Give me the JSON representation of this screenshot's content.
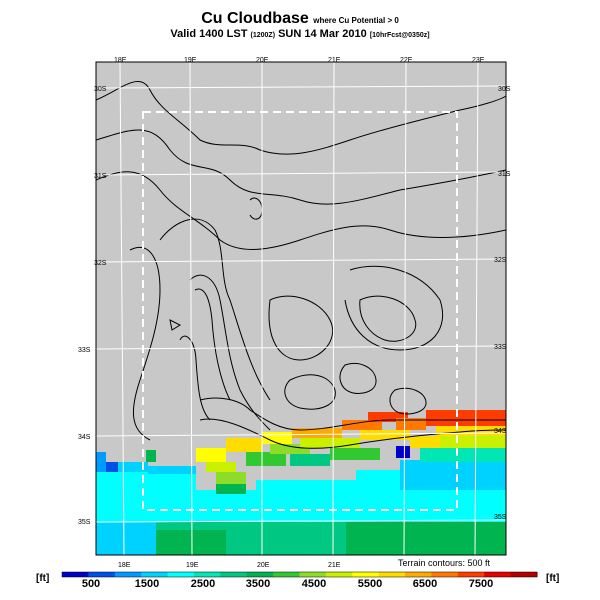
{
  "title": {
    "main": "Cu Cloudbase",
    "sub": "where Cu Potential > 0"
  },
  "subtitle": {
    "valid": "Valid 1400 LST",
    "z": "(1200Z)",
    "date": "SUN 14 Mar 2010",
    "model": "[10hrFcst@0350z]"
  },
  "map": {
    "lon_labels_top": [
      "18E",
      "19E",
      "20E",
      "21E",
      "22E",
      "23E"
    ],
    "lon_labels_bottom": [
      "18E",
      "19E",
      "20E",
      "21E"
    ],
    "lat_labels_left": [
      "30S",
      "31S",
      "32S",
      "33S",
      "34S",
      "35S"
    ],
    "lat_labels_right": [
      "30S",
      "31S",
      "32S",
      "33S",
      "34S",
      "35S"
    ],
    "terrain_note": "Terrain contours: 500 ft",
    "background_color": "#c8c8c8"
  },
  "legend": {
    "unit_left": "[ft]",
    "unit_right": "[ft]",
    "labels": [
      "500",
      "1500",
      "2500",
      "3500",
      "4500",
      "5500",
      "6500",
      "7500"
    ],
    "colors": [
      "#0000c8",
      "#0050e6",
      "#009bff",
      "#00d2ff",
      "#00ffff",
      "#00e6b4",
      "#00c882",
      "#00b450",
      "#32c832",
      "#8cdc28",
      "#c8f000",
      "#ffff00",
      "#ffdc00",
      "#ffaa00",
      "#ff7800",
      "#ff3c00",
      "#e60000",
      "#b40000"
    ]
  }
}
